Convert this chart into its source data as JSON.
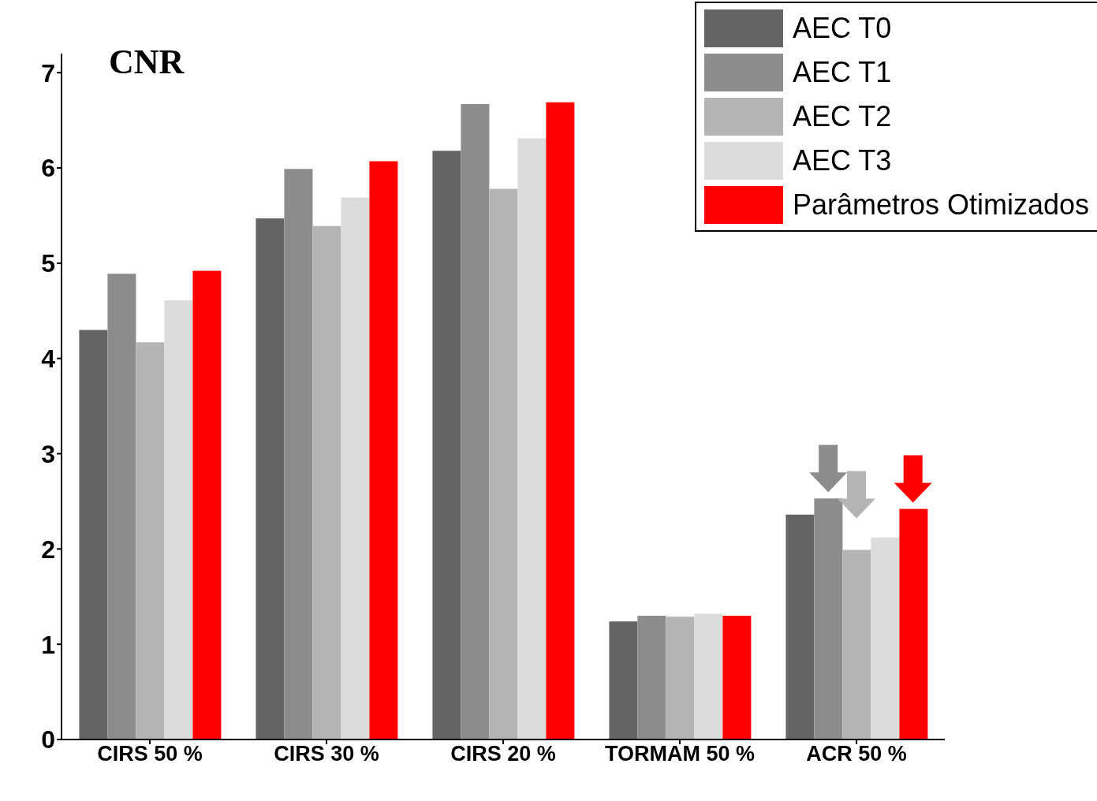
{
  "chart_data": {
    "type": "bar",
    "title": "CNR",
    "categories": [
      "CIRS 50 %",
      "CIRS 30 %",
      "CIRS 20 %",
      "TORMAM 50 %",
      "ACR 50 %"
    ],
    "series": [
      {
        "name": "AEC T0",
        "color": "#646464",
        "values": [
          4.3,
          5.47,
          6.18,
          1.24,
          2.36
        ]
      },
      {
        "name": "AEC T1",
        "color": "#8c8c8c",
        "values": [
          4.89,
          5.99,
          6.67,
          1.3,
          2.53
        ]
      },
      {
        "name": "AEC T2",
        "color": "#b4b4b4",
        "values": [
          4.17,
          5.39,
          5.78,
          1.29,
          1.99
        ]
      },
      {
        "name": "AEC T3",
        "color": "#dcdcdc",
        "values": [
          4.61,
          5.69,
          6.31,
          1.32,
          2.12
        ]
      },
      {
        "name": "Parâmetros Otimizados",
        "color": "#ff0000",
        "values": [
          4.92,
          6.07,
          6.69,
          1.3,
          2.42
        ]
      }
    ],
    "ylim": [
      0,
      7.2
    ],
    "yticks": [
      0,
      1,
      2,
      3,
      4,
      5,
      6,
      7
    ],
    "legend": "top right"
  }
}
